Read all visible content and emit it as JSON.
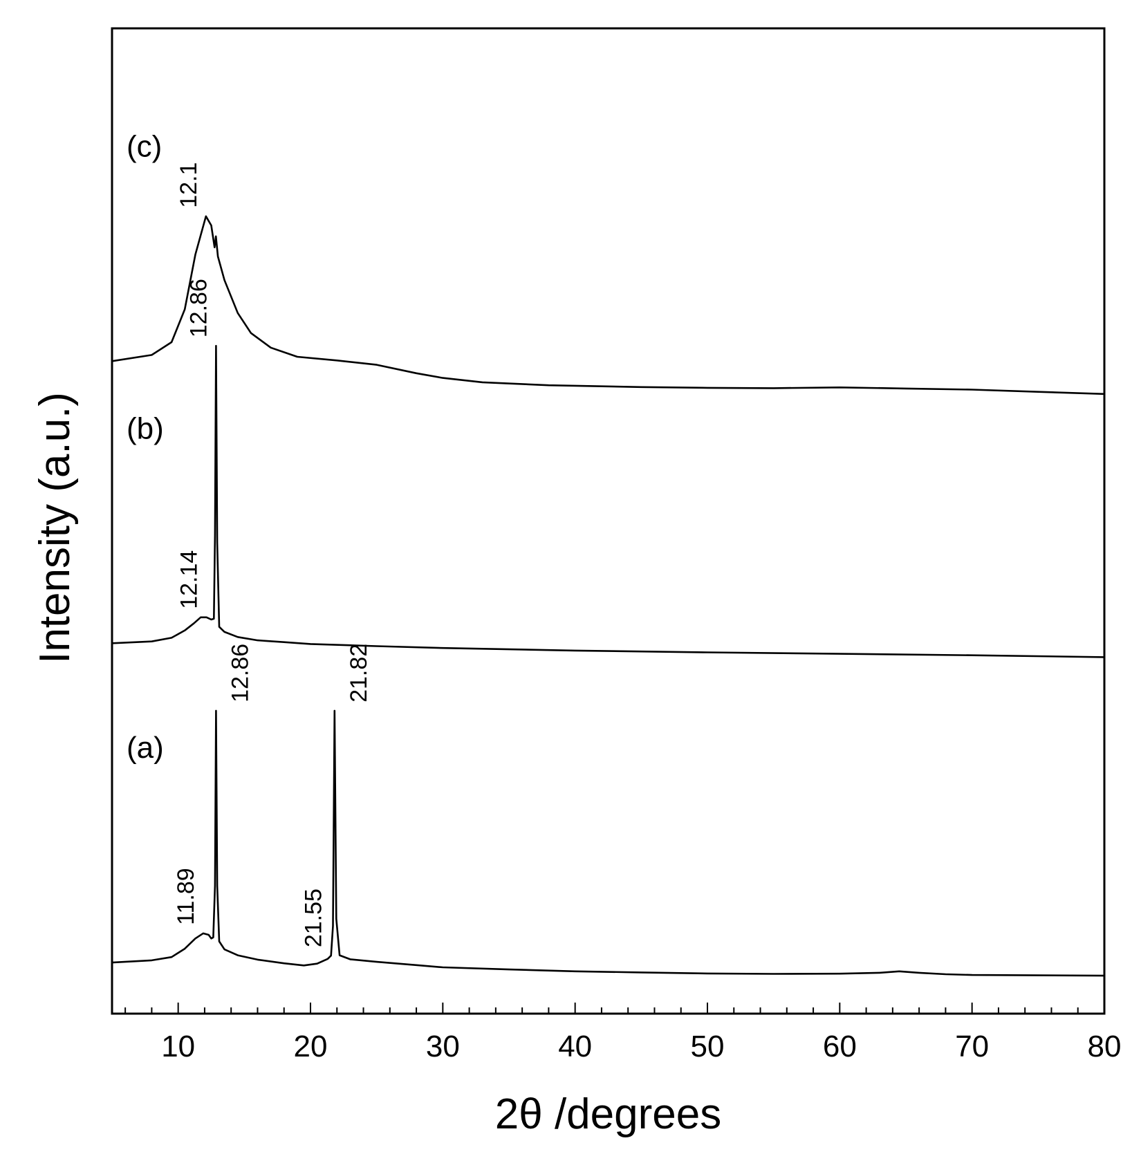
{
  "chart_data": {
    "type": "line",
    "xlabel": "2θ /degrees",
    "ylabel": "Intensity (a.u.)",
    "xlim": [
      5,
      80
    ],
    "x_ticks": [
      10,
      20,
      30,
      40,
      50,
      60,
      70,
      80
    ],
    "x_minor_step": 2,
    "y_ticks": "none",
    "grid": false,
    "legend": "none",
    "line_color": "#000000",
    "series": [
      {
        "tag": "(a)",
        "offset": 0,
        "points": [
          [
            5,
            4.0
          ],
          [
            8,
            4.6
          ],
          [
            9.5,
            5.5
          ],
          [
            10.5,
            7.8
          ],
          [
            11.3,
            10.6
          ],
          [
            11.89,
            12.0
          ],
          [
            12.3,
            11.6
          ],
          [
            12.5,
            10.6
          ],
          [
            12.65,
            10.9
          ],
          [
            12.78,
            25
          ],
          [
            12.86,
            73
          ],
          [
            12.95,
            25
          ],
          [
            13.1,
            9.8
          ],
          [
            13.5,
            7.6
          ],
          [
            14.5,
            6.0
          ],
          [
            16,
            4.8
          ],
          [
            18,
            3.8
          ],
          [
            19.5,
            3.2
          ],
          [
            20.5,
            3.7
          ],
          [
            21.3,
            5.0
          ],
          [
            21.55,
            5.9
          ],
          [
            21.7,
            14
          ],
          [
            21.82,
            73
          ],
          [
            21.95,
            16
          ],
          [
            22.2,
            6.0
          ],
          [
            23,
            4.9
          ],
          [
            25,
            4.2
          ],
          [
            28,
            3.3
          ],
          [
            30,
            2.7
          ],
          [
            35,
            2.1
          ],
          [
            40,
            1.6
          ],
          [
            45,
            1.3
          ],
          [
            50,
            1.0
          ],
          [
            55,
            0.9
          ],
          [
            60,
            0.95
          ],
          [
            63,
            1.2
          ],
          [
            64.5,
            1.6
          ],
          [
            66,
            1.2
          ],
          [
            68,
            0.8
          ],
          [
            70,
            0.6
          ],
          [
            75,
            0.5
          ],
          [
            80,
            0.4
          ]
        ]
      },
      {
        "tag": "(b)",
        "offset": 91,
        "points": [
          [
            5,
            0.5
          ],
          [
            8,
            1.0
          ],
          [
            9.5,
            2.0
          ],
          [
            10.5,
            4.0
          ],
          [
            11.2,
            6.0
          ],
          [
            11.7,
            7.6
          ],
          [
            12.14,
            7.6
          ],
          [
            12.5,
            7.0
          ],
          [
            12.7,
            7.2
          ],
          [
            12.78,
            30
          ],
          [
            12.86,
            82
          ],
          [
            12.95,
            28
          ],
          [
            13.1,
            5.0
          ],
          [
            13.5,
            3.6
          ],
          [
            14.5,
            2.2
          ],
          [
            16,
            1.3
          ],
          [
            18,
            0.8
          ],
          [
            20,
            0.3
          ],
          [
            25,
            -0.3
          ],
          [
            30,
            -0.8
          ],
          [
            40,
            -1.5
          ],
          [
            50,
            -2.0
          ],
          [
            60,
            -2.4
          ],
          [
            70,
            -2.8
          ],
          [
            80,
            -3.3
          ]
        ]
      },
      {
        "tag": "(c)",
        "offset": 166,
        "points": [
          [
            5,
            2.8
          ],
          [
            8,
            4.5
          ],
          [
            9.5,
            8.0
          ],
          [
            10.5,
            17
          ],
          [
            11.3,
            32
          ],
          [
            12.1,
            42.5
          ],
          [
            12.5,
            40.0
          ],
          [
            12.75,
            34
          ],
          [
            12.85,
            37
          ],
          [
            13.0,
            31.5
          ],
          [
            13.5,
            25
          ],
          [
            14.5,
            16
          ],
          [
            15.5,
            10.5
          ],
          [
            17,
            6.5
          ],
          [
            19,
            4.0
          ],
          [
            22,
            3.0
          ],
          [
            25,
            1.8
          ],
          [
            28,
            -0.5
          ],
          [
            30,
            -1.8
          ],
          [
            33,
            -3.0
          ],
          [
            38,
            -3.8
          ],
          [
            45,
            -4.3
          ],
          [
            50,
            -4.5
          ],
          [
            55,
            -4.6
          ],
          [
            60,
            -4.4
          ],
          [
            65,
            -4.7
          ],
          [
            70,
            -5.0
          ],
          [
            75,
            -5.6
          ],
          [
            80,
            -6.2
          ]
        ]
      }
    ],
    "peak_labels": [
      {
        "series": "(a)",
        "text": "11.89",
        "x": 11.89,
        "y": 12.0,
        "side": "left"
      },
      {
        "series": "(a)",
        "text": "12.86",
        "x": 12.86,
        "y": 73,
        "side": "right"
      },
      {
        "series": "(a)",
        "text": "21.55",
        "x": 21.55,
        "y": 5.9,
        "side": "left"
      },
      {
        "series": "(a)",
        "text": "21.82",
        "x": 21.82,
        "y": 73,
        "side": "right"
      },
      {
        "series": "(b)",
        "text": "12.14",
        "x": 12.14,
        "y": 7.6,
        "side": "left"
      },
      {
        "series": "(b)",
        "text": "12.86",
        "x": 12.86,
        "y": 82,
        "side": "left"
      },
      {
        "series": "(c)",
        "text": "12.1",
        "x": 12.1,
        "y": 42.5,
        "side": "left"
      }
    ]
  }
}
